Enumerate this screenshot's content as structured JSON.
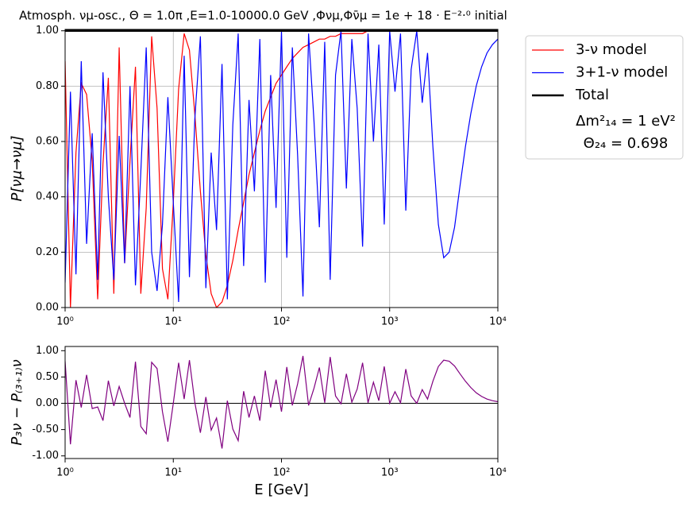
{
  "chart_data": [
    {
      "type": "line",
      "title": "Atmosph. νμ-osc., Θ = 1.0π ,E=1.0-10000.0 GeV  ,Φνμ,Φν̄μ = 1e + 18 · E⁻²·⁰ initial",
      "ylabel": "P[νμ→νμ]",
      "xscale": "log",
      "grid": true,
      "legend": "outside upper right",
      "annotations": [
        "Δm²₁₄ = 1 eV²",
        "Θ₂₄ = 0.698"
      ],
      "xlim": [
        1,
        10000
      ],
      "ylim": [
        0,
        1.005
      ],
      "xticks": [
        {
          "value": 1,
          "label": "10⁰"
        },
        {
          "value": 10,
          "label": "10¹"
        },
        {
          "value": 100,
          "label": "10²"
        },
        {
          "value": 1000,
          "label": "10³"
        },
        {
          "value": 10000,
          "label": "10⁴"
        }
      ],
      "yticks": [
        {
          "value": 0,
          "label": "0.00"
        },
        {
          "value": 0.2,
          "label": "0.20"
        },
        {
          "value": 0.4,
          "label": "0.40"
        },
        {
          "value": 0.6,
          "label": "0.60"
        },
        {
          "value": 0.8,
          "label": "0.80"
        },
        {
          "value": 1.0,
          "label": "1.00"
        }
      ],
      "x": [
        1,
        1.12,
        1.26,
        1.41,
        1.58,
        1.78,
        2,
        2.24,
        2.51,
        2.82,
        3.16,
        3.55,
        3.98,
        4.47,
        5.01,
        5.62,
        6.31,
        7.08,
        7.94,
        8.91,
        10,
        11.2,
        12.6,
        14.1,
        15.8,
        17.8,
        20,
        22.4,
        25.1,
        28.2,
        31.6,
        35.5,
        39.8,
        44.7,
        50.1,
        56.2,
        63.1,
        70.8,
        79.4,
        89.1,
        100,
        112,
        126,
        141,
        158,
        178,
        200,
        224,
        251,
        282,
        316,
        355,
        398,
        447,
        501,
        562,
        631,
        708,
        794,
        891,
        1000,
        1120,
        1260,
        1410,
        1580,
        1780,
        2000,
        2240,
        2510,
        2820,
        3160,
        3550,
        3980,
        4470,
        5010,
        5620,
        6310,
        7080,
        7940,
        8910,
        10000
      ],
      "series": [
        {
          "name": "3-ν model",
          "color": "#ff0000",
          "width": 1.2,
          "values": [
            0.89,
            0.0,
            0.56,
            0.81,
            0.77,
            0.53,
            0.03,
            0.52,
            0.83,
            0.05,
            0.94,
            0.16,
            0.53,
            0.87,
            0.05,
            0.36,
            0.98,
            0.72,
            0.14,
            0.03,
            0.38,
            0.79,
            0.99,
            0.93,
            0.7,
            0.42,
            0.19,
            0.05,
            0.0,
            0.02,
            0.08,
            0.17,
            0.28,
            0.38,
            0.48,
            0.56,
            0.64,
            0.71,
            0.76,
            0.81,
            0.84,
            0.87,
            0.9,
            0.92,
            0.94,
            0.95,
            0.96,
            0.97,
            0.97,
            0.98,
            0.98,
            0.99,
            0.99,
            0.99,
            0.99,
            0.99,
            1.0,
            1.0,
            1.0,
            1.0,
            1.0,
            1.0,
            1.0,
            1.0,
            1.0,
            1.0,
            1.0,
            1.0,
            1.0,
            1.0,
            1.0,
            1.0,
            1.0,
            1.0,
            1.0,
            1.0,
            1.0,
            1.0,
            1.0,
            1.0,
            1.0
          ]
        },
        {
          "name": "3+1-ν model",
          "color": "#0000ff",
          "width": 1.2,
          "values": [
            0.09,
            0.78,
            0.12,
            0.89,
            0.23,
            0.63,
            0.1,
            0.85,
            0.4,
            0.1,
            0.62,
            0.16,
            0.8,
            0.08,
            0.49,
            0.94,
            0.2,
            0.06,
            0.3,
            0.76,
            0.38,
            0.02,
            0.91,
            0.11,
            0.68,
            0.98,
            0.07,
            0.56,
            0.28,
            0.88,
            0.03,
            0.66,
            0.99,
            0.15,
            0.75,
            0.42,
            0.97,
            0.09,
            0.84,
            0.36,
            1.0,
            0.18,
            0.94,
            0.55,
            0.04,
            0.99,
            0.67,
            0.29,
            0.96,
            0.1,
            0.84,
            1.0,
            0.43,
            0.97,
            0.72,
            0.22,
            0.99,
            0.6,
            0.95,
            0.3,
            1.0,
            0.78,
            0.99,
            0.35,
            0.86,
            1.0,
            0.74,
            0.92,
            0.58,
            0.3,
            0.18,
            0.2,
            0.29,
            0.44,
            0.58,
            0.7,
            0.8,
            0.87,
            0.92,
            0.95,
            0.97
          ]
        },
        {
          "name": "Total",
          "color": "#000000",
          "width": 2.5,
          "x": [
            1,
            10000
          ],
          "values": [
            1.0,
            1.0
          ]
        }
      ]
    },
    {
      "type": "line",
      "ylabel": "P₃ν − P₍₃₊₁₎ν",
      "xlabel": "E [GeV]",
      "xscale": "log",
      "grid": false,
      "hline": {
        "value": 0,
        "color": "#000000"
      },
      "xlim": [
        1,
        10000
      ],
      "ylim": [
        -1.05,
        1.08
      ],
      "xticks": [
        {
          "value": 1,
          "label": "10⁰"
        },
        {
          "value": 10,
          "label": "10¹"
        },
        {
          "value": 100,
          "label": "10²"
        },
        {
          "value": 1000,
          "label": "10³"
        },
        {
          "value": 10000,
          "label": "10⁴"
        }
      ],
      "yticks": [
        {
          "value": -1.0,
          "label": "-1.00"
        },
        {
          "value": -0.5,
          "label": "-0.50"
        },
        {
          "value": 0,
          "label": "0.00"
        },
        {
          "value": 0.5,
          "label": "0.50"
        },
        {
          "value": 1.0,
          "label": "1.00"
        }
      ],
      "x": [
        1,
        1.12,
        1.26,
        1.41,
        1.58,
        1.78,
        2,
        2.24,
        2.51,
        2.82,
        3.16,
        3.55,
        3.98,
        4.47,
        5.01,
        5.62,
        6.31,
        7.08,
        7.94,
        8.91,
        10,
        11.2,
        12.6,
        14.1,
        15.8,
        17.8,
        20,
        22.4,
        25.1,
        28.2,
        31.6,
        35.5,
        39.8,
        44.7,
        50.1,
        56.2,
        63.1,
        70.8,
        79.4,
        89.1,
        100,
        112,
        126,
        141,
        158,
        178,
        200,
        224,
        251,
        282,
        316,
        355,
        398,
        447,
        501,
        562,
        631,
        708,
        794,
        891,
        1000,
        1120,
        1260,
        1410,
        1580,
        1780,
        2000,
        2240,
        2510,
        2820,
        3160,
        3550,
        3980,
        4470,
        5010,
        5620,
        6310,
        7080,
        7940,
        8910,
        10000
      ],
      "series": [
        {
          "color": "#800080",
          "width": 1.2,
          "values": [
            0.8,
            -0.78,
            0.44,
            -0.08,
            0.54,
            -0.1,
            -0.07,
            -0.33,
            0.43,
            -0.05,
            0.32,
            0,
            -0.27,
            0.79,
            -0.44,
            -0.58,
            0.78,
            0.66,
            -0.16,
            -0.73,
            0,
            0.77,
            0.08,
            0.82,
            0.02,
            -0.56,
            0.12,
            -0.51,
            -0.28,
            -0.86,
            0.05,
            -0.49,
            -0.71,
            0.23,
            -0.27,
            0.14,
            -0.33,
            0.62,
            -0.08,
            0.45,
            -0.16,
            0.69,
            -0.04,
            0.37,
            0.9,
            -0.04,
            0.29,
            0.68,
            0.01,
            0.88,
            0.14,
            -0.01,
            0.56,
            0.02,
            0.27,
            0.77,
            0.01,
            0.4,
            0.05,
            0.7,
            0,
            0.22,
            0.01,
            0.65,
            0.14,
            0,
            0.26,
            0.08,
            0.42,
            0.7,
            0.82,
            0.8,
            0.71,
            0.56,
            0.42,
            0.3,
            0.2,
            0.13,
            0.08,
            0.05,
            0.03
          ]
        }
      ]
    }
  ]
}
